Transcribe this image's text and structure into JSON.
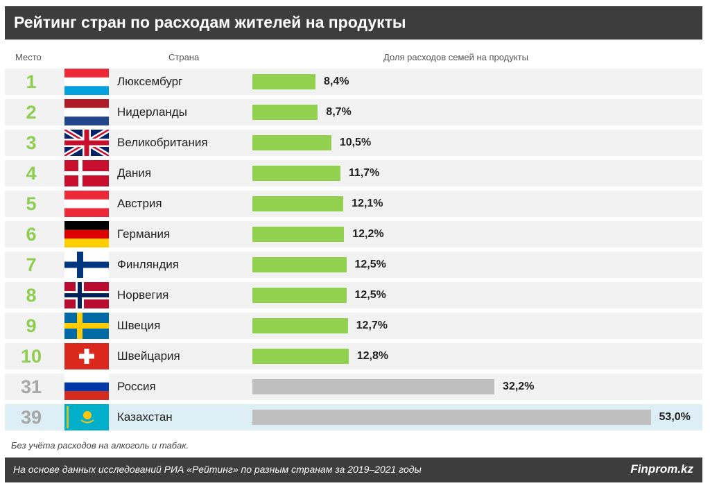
{
  "title": "Рейтинг стран по расходам жителей на продукты",
  "headers": {
    "rank": "Место",
    "country": "Страна",
    "share": "Доля расходов семей на продукты"
  },
  "note": "Без учёта расходов на алкоголь и табак.",
  "footer": {
    "source": "На основе данных исследований РИА «Рейтинг» по разным странам за 2019–2021 годы",
    "brand": "Finprom.kz"
  },
  "colors": {
    "top10_bar": "#92d050",
    "other_bar": "#bfbfbf",
    "top10_rank": "#8fcd50",
    "other_rank": "#a6a6a6",
    "highlight_row": "#ddeef5"
  },
  "chart_data": {
    "type": "bar",
    "orientation": "horizontal",
    "title": "Рейтинг стран по расходам жителей на продукты",
    "xlabel": "Доля расходов семей на продукты",
    "unit": "%",
    "rows": [
      {
        "rank": "1",
        "country": "Люксембург",
        "flag": "luxembourg",
        "value": 8.4,
        "label": "8,4%",
        "group": "top10"
      },
      {
        "rank": "2",
        "country": "Нидерланды",
        "flag": "netherlands",
        "value": 8.7,
        "label": "8,7%",
        "group": "top10"
      },
      {
        "rank": "3",
        "country": "Великобритания",
        "flag": "united-kingdom",
        "value": 10.5,
        "label": "10,5%",
        "group": "top10"
      },
      {
        "rank": "4",
        "country": "Дания",
        "flag": "denmark",
        "value": 11.7,
        "label": "11,7%",
        "group": "top10"
      },
      {
        "rank": "5",
        "country": "Австрия",
        "flag": "austria",
        "value": 12.1,
        "label": "12,1%",
        "group": "top10"
      },
      {
        "rank": "6",
        "country": "Германия",
        "flag": "germany",
        "value": 12.2,
        "label": "12,2%",
        "group": "top10"
      },
      {
        "rank": "7",
        "country": "Финляндия",
        "flag": "finland",
        "value": 12.5,
        "label": "12,5%",
        "group": "top10"
      },
      {
        "rank": "8",
        "country": "Норвегия",
        "flag": "norway",
        "value": 12.5,
        "label": "12,5%",
        "group": "top10"
      },
      {
        "rank": "9",
        "country": "Швеция",
        "flag": "sweden",
        "value": 12.7,
        "label": "12,7%",
        "group": "top10"
      },
      {
        "rank": "10",
        "country": "Швейцария",
        "flag": "switzerland",
        "value": 12.8,
        "label": "12,8%",
        "group": "top10"
      },
      {
        "rank": "31",
        "country": "Россия",
        "flag": "russia",
        "value": 32.2,
        "label": "32,2%",
        "group": "other"
      },
      {
        "rank": "39",
        "country": "Казахстан",
        "flag": "kazakhstan",
        "value": 53.0,
        "label": "53,0%",
        "group": "highlight"
      }
    ]
  }
}
